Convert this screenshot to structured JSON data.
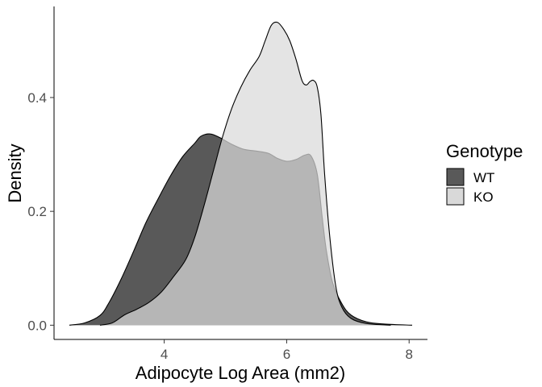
{
  "chart_data": {
    "type": "area",
    "xlabel": "Adipocyte Log Area (mm2)",
    "ylabel": "Density",
    "xlim": [
      2.2,
      8.3
    ],
    "ylim": [
      -0.025,
      0.56
    ],
    "x_ticks": [
      "4",
      "6",
      "8"
    ],
    "x_tick_values": [
      4,
      6,
      8
    ],
    "y_ticks": [
      "0.0",
      "0.2",
      "0.4"
    ],
    "y_tick_values": [
      0.0,
      0.2,
      0.4
    ],
    "grid": false,
    "legend": {
      "title": "Genotype",
      "position": "right",
      "entries": [
        "WT",
        "KO"
      ]
    },
    "series": [
      {
        "name": "WT",
        "color": "#595959",
        "points": [
          [
            2.45,
            0.0
          ],
          [
            2.7,
            0.004
          ],
          [
            2.95,
            0.017
          ],
          [
            3.1,
            0.04
          ],
          [
            3.3,
            0.082
          ],
          [
            3.5,
            0.13
          ],
          [
            3.7,
            0.18
          ],
          [
            3.9,
            0.222
          ],
          [
            4.1,
            0.262
          ],
          [
            4.3,
            0.296
          ],
          [
            4.5,
            0.32
          ],
          [
            4.6,
            0.332
          ],
          [
            4.75,
            0.336
          ],
          [
            4.9,
            0.33
          ],
          [
            5.1,
            0.318
          ],
          [
            5.3,
            0.309
          ],
          [
            5.5,
            0.306
          ],
          [
            5.7,
            0.302
          ],
          [
            5.85,
            0.293
          ],
          [
            6.0,
            0.288
          ],
          [
            6.15,
            0.291
          ],
          [
            6.3,
            0.299
          ],
          [
            6.4,
            0.297
          ],
          [
            6.5,
            0.265
          ],
          [
            6.58,
            0.19
          ],
          [
            6.65,
            0.13
          ],
          [
            6.75,
            0.075
          ],
          [
            6.9,
            0.038
          ],
          [
            7.05,
            0.018
          ],
          [
            7.3,
            0.006
          ],
          [
            7.6,
            0.002
          ],
          [
            8.05,
            0.0
          ]
        ]
      },
      {
        "name": "KO",
        "color": "#d9d9d9",
        "points": [
          [
            2.95,
            0.0
          ],
          [
            3.15,
            0.004
          ],
          [
            3.35,
            0.018
          ],
          [
            3.55,
            0.028
          ],
          [
            3.75,
            0.04
          ],
          [
            3.95,
            0.058
          ],
          [
            4.15,
            0.085
          ],
          [
            4.35,
            0.115
          ],
          [
            4.5,
            0.155
          ],
          [
            4.65,
            0.21
          ],
          [
            4.8,
            0.27
          ],
          [
            4.95,
            0.33
          ],
          [
            5.1,
            0.38
          ],
          [
            5.25,
            0.418
          ],
          [
            5.4,
            0.448
          ],
          [
            5.55,
            0.472
          ],
          [
            5.65,
            0.5
          ],
          [
            5.75,
            0.527
          ],
          [
            5.85,
            0.532
          ],
          [
            5.95,
            0.52
          ],
          [
            6.05,
            0.5
          ],
          [
            6.15,
            0.468
          ],
          [
            6.25,
            0.43
          ],
          [
            6.32,
            0.422
          ],
          [
            6.38,
            0.428
          ],
          [
            6.44,
            0.43
          ],
          [
            6.5,
            0.418
          ],
          [
            6.56,
            0.37
          ],
          [
            6.62,
            0.265
          ],
          [
            6.7,
            0.16
          ],
          [
            6.8,
            0.07
          ],
          [
            6.9,
            0.032
          ],
          [
            7.05,
            0.012
          ],
          [
            7.3,
            0.003
          ],
          [
            7.7,
            0.0
          ]
        ]
      }
    ]
  }
}
